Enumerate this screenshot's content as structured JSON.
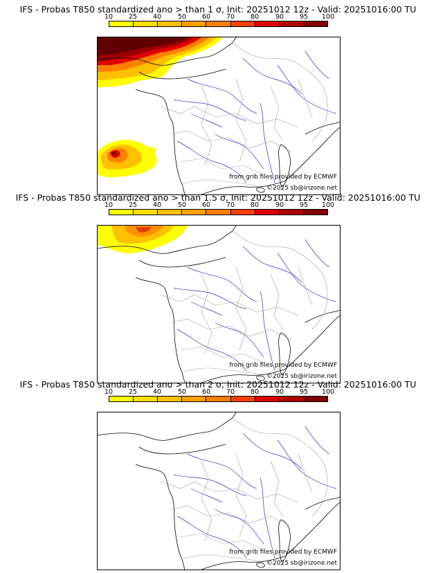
{
  "colorbar": {
    "labels": [
      "10",
      "25",
      "40",
      "50",
      "60",
      "70",
      "80",
      "90",
      "95",
      "100"
    ],
    "colors": [
      "#ffff00",
      "#ffe000",
      "#ffc000",
      "#ffa000",
      "#ff7f00",
      "#ff4000",
      "#e00000",
      "#b00000",
      "#800000"
    ]
  },
  "map": {
    "coast_color": "#000000",
    "rivers_color": "#3030d0",
    "borders_color": "#a0a0a0"
  },
  "panels": [
    {
      "title": "IFS - Probas T850  standardized ano > than 1 σ, Init: 20251012 12z - Valid: 20251016:00 TU",
      "credit_ecmwf": "from grib files provided by ECMWF",
      "credit_copy": "©2025 sb@irizone.net"
    },
    {
      "title": "IFS - Probas T850  standardized ano > than 1.5 σ, Init: 20251012 12z - Valid: 20251016:00 TU",
      "credit_ecmwf": "from grib files provided by ECMWF",
      "credit_copy": "©2025 sb@irizone.net"
    },
    {
      "title": "IFS - Probas T850  standardized ano > than 2 σ, Init: 20251012 12z - Valid: 20251016:00 TU",
      "credit_ecmwf": "from grib files provided by ECMWF",
      "credit_copy": "©2025 sb@irizone.net"
    }
  ]
}
